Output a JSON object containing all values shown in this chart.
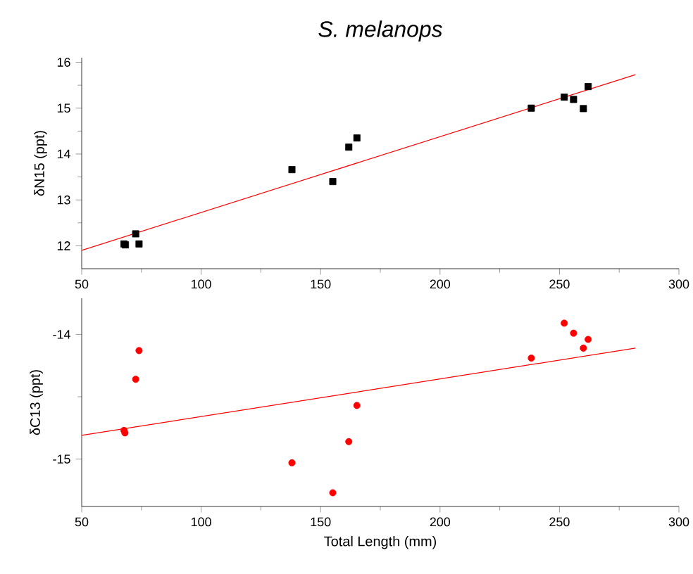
{
  "chart_data": [
    {
      "type": "scatter",
      "title": "S. melanops",
      "ylabel": "δN15 (ppt)",
      "xlim": [
        50,
        300
      ],
      "xticks": [
        50,
        100,
        150,
        200,
        250,
        300
      ],
      "ylim": [
        11.5,
        16.1
      ],
      "yticks": [
        12,
        13,
        14,
        15,
        16
      ],
      "series": [
        {
          "marker": "square",
          "color": "#000000",
          "x": [
            67.7,
            68.3,
            72.6,
            74,
            138,
            155.1,
            161.8,
            165.2,
            238.2,
            252,
            255.9,
            260,
            262
          ],
          "values": [
            12.04,
            12.02,
            12.26,
            12.04,
            13.66,
            13.4,
            14.15,
            14.35,
            15.0,
            15.24,
            15.19,
            14.99,
            15.47
          ]
        },
        {
          "type": "line",
          "marker": "none",
          "color": "#ff0000",
          "x": [
            50,
            281.8
          ],
          "values": [
            11.9,
            15.73
          ]
        }
      ]
    },
    {
      "type": "scatter",
      "xlabel": "Total Length (mm)",
      "ylabel": "δC13 (ppt)",
      "xlim": [
        50,
        300
      ],
      "xticks": [
        50,
        100,
        150,
        200,
        250,
        300
      ],
      "ylim": [
        -15.38,
        -13.71
      ],
      "yticks": [
        -15,
        -14
      ],
      "series": [
        {
          "marker": "circle",
          "color": "#ff0000",
          "x": [
            67.7,
            68.1,
            72.6,
            74,
            138,
            155.1,
            161.8,
            165.2,
            238.2,
            252,
            255.9,
            260,
            262
          ],
          "values": [
            -14.77,
            -14.79,
            -14.36,
            -14.13,
            -15.03,
            -15.27,
            -14.86,
            -14.57,
            -14.19,
            -13.91,
            -13.99,
            -14.11,
            -14.04
          ]
        },
        {
          "type": "line",
          "marker": "none",
          "color": "#ff0000",
          "x": [
            50,
            281.8
          ],
          "values": [
            -14.81,
            -14.11
          ]
        }
      ]
    }
  ]
}
